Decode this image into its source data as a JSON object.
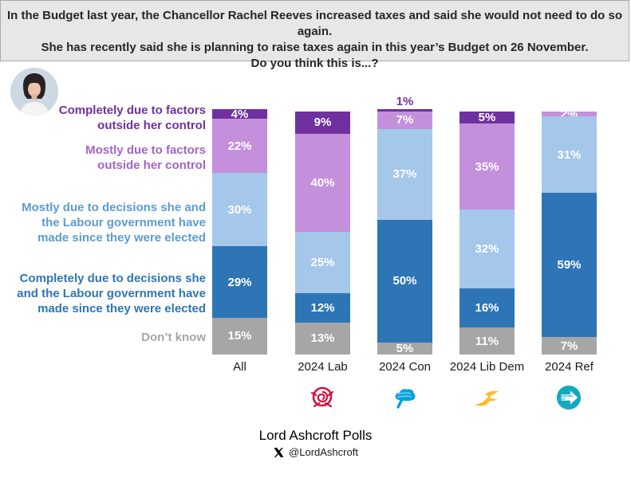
{
  "title": {
    "lines": [
      "In the Budget last year, the Chancellor Rachel Reeves increased taxes and said she would not need to do so again.",
      "She has recently said she is planning to raise taxes again in this year’s Budget on 26 November.",
      "Do you think this is...?"
    ]
  },
  "colors": {
    "completely_outside": "#7030a0",
    "mostly_outside": "#c490dc",
    "mostly_decisions": "#a4c7ea",
    "completely_decisions": "#2e75b6",
    "dont_know": "#a6a6a6",
    "legend_mostly_outside_text": "#a563c8",
    "legend_mostly_decisions_text": "#5b9bd5",
    "banner_bg": "#e7e7e7"
  },
  "chart_data": {
    "type": "bar",
    "stacked": true,
    "title": "Do you think this is...?",
    "categories": [
      "All",
      "2024 Lab",
      "2024 Con",
      "2024 Lib Dem",
      "2024 Ref"
    ],
    "series": [
      {
        "name": "Completely due to factors outside her control",
        "color": "#7030a0",
        "values": [
          4,
          9,
          1,
          5,
          0
        ]
      },
      {
        "name": "Mostly due to factors outside her control",
        "color": "#c490dc",
        "values": [
          22,
          40,
          7,
          35,
          2
        ]
      },
      {
        "name": "Mostly due to decisions she and the Labour government have made since they were elected",
        "color": "#a4c7ea",
        "values": [
          30,
          25,
          37,
          32,
          31
        ]
      },
      {
        "name": "Completely due to decisions she and the Labour government have made since they were elected",
        "color": "#2e75b6",
        "values": [
          29,
          12,
          50,
          16,
          59
        ]
      },
      {
        "name": "Don’t know",
        "color": "#a6a6a6",
        "values": [
          15,
          13,
          5,
          11,
          7
        ]
      }
    ],
    "value_suffix": "%",
    "ylim": [
      0,
      100
    ],
    "grid": false,
    "legend_position": "left",
    "logos": [
      "labour-rose",
      "conservative-tree",
      "libdem-bird",
      "reform-uk-arrow"
    ]
  },
  "legend": {
    "items": [
      {
        "lines": [
          "Completely due to factors",
          "outside her control"
        ],
        "color": "#7030a0"
      },
      {
        "lines": [
          "Mostly due to factors",
          "outside her control"
        ],
        "color": "#a563c8"
      },
      {
        "lines": [
          "Mostly due to decisions she and",
          "the Labour government have",
          "made since they were elected"
        ],
        "color": "#5b9bd5"
      },
      {
        "lines": [
          "Completely due to decisions she",
          "and the Labour government have",
          "made since they were elected"
        ],
        "color": "#2e75b6"
      },
      {
        "lines": [
          "Don’t know"
        ],
        "color": "#a6a6a6"
      }
    ]
  },
  "footer": {
    "source": "Lord Ashcroft Polls",
    "x_handle": "@LordAshcroft"
  }
}
